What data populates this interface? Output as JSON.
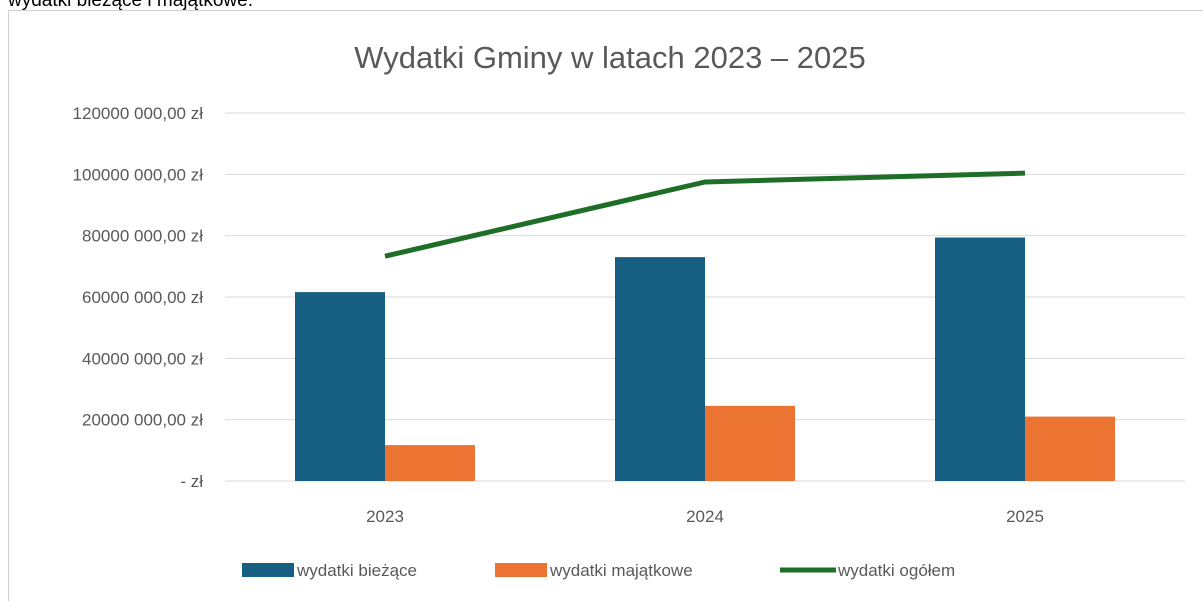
{
  "caption": "wydatki bieżące i majątkowe.",
  "chart_data": {
    "type": "bar",
    "title": "Wydatki Gminy  w latach 2023 – 2025",
    "categories": [
      "2023",
      "2024",
      "2025"
    ],
    "series": [
      {
        "name": "wydatki bieżące",
        "type": "bar",
        "color": "#176084",
        "values": [
          61600000,
          73000000,
          79400000
        ]
      },
      {
        "name": "wydatki majątkowe",
        "type": "bar",
        "color": "#ec7433",
        "values": [
          11700000,
          24500000,
          21000000
        ]
      },
      {
        "name": "wydatki ogółem",
        "type": "line",
        "color": "#1f6e28",
        "values": [
          73300000,
          97500000,
          100400000
        ]
      }
    ],
    "ylim": [
      0,
      120000000
    ],
    "yticks": [
      {
        "value": 0,
        "label": "- zł"
      },
      {
        "value": 20000000,
        "label": "20000 000,00 zł"
      },
      {
        "value": 40000000,
        "label": "40000 000,00 zł"
      },
      {
        "value": 60000000,
        "label": "60000 000,00 zł"
      },
      {
        "value": 80000000,
        "label": "80000 000,00 zł"
      },
      {
        "value": 100000000,
        "label": "100000 000,00 zł"
      },
      {
        "value": 120000000,
        "label": "120000 000,00 zł"
      }
    ],
    "grid": true,
    "legend": "bottom"
  }
}
